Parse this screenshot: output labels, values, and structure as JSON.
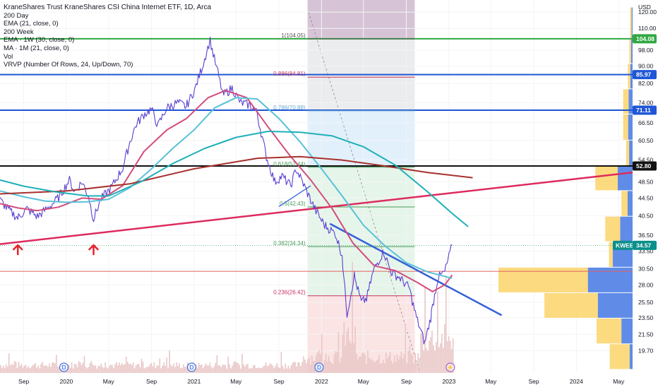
{
  "header": {
    "title": "KraneShares Trust KraneShares CSI China Internet ETF, 1D, Arca",
    "indicators": [
      "200 Day",
      "EMA (21, close, 0)",
      "200 Week",
      "EMA · 1W (30, close, 0)",
      "MA · 1M (21, close, 0)",
      "Vol",
      "VRVP (Number Of Rows, 24, Up/Down, 70)"
    ]
  },
  "chart_data": {
    "type": "line",
    "symbol": "KWEB",
    "currency_label": "USD",
    "y_scale": "log",
    "ylim": [
      17.5,
      128
    ],
    "xlim": [
      "2019-06-25",
      "2024-06-10"
    ],
    "y_ticks": [
      120.0,
      110.0,
      98.0,
      90.0,
      82.0,
      74.0,
      66.5,
      60.5,
      54.5,
      48.5,
      44.5,
      40.5,
      36.5,
      33.5,
      30.5,
      28.0,
      25.5,
      23.5,
      21.5,
      19.7
    ],
    "x_ticks": [
      "Sep",
      "2020",
      "May",
      "Sep",
      "2021",
      "May",
      "Sep",
      "2022",
      "May",
      "Sep",
      "2023",
      "May",
      "Sep",
      "2024",
      "May"
    ],
    "x_tick_dates": [
      "2019-09-01",
      "2020-01-01",
      "2020-05-01",
      "2020-09-01",
      "2021-01-01",
      "2021-05-01",
      "2021-09-01",
      "2022-01-01",
      "2022-05-01",
      "2022-09-01",
      "2023-01-01",
      "2023-05-01",
      "2023-09-01",
      "2024-01-01",
      "2024-05-01"
    ],
    "price_label": "KWEB",
    "last_price": 34.57,
    "series": [
      {
        "name": "KWEB",
        "color": "#5b3fd0",
        "points": [
          [
            "2019-06-25",
            44.0
          ],
          [
            "2019-07-20",
            41.8
          ],
          [
            "2019-08-15",
            40.0
          ],
          [
            "2019-09-10",
            42.0
          ],
          [
            "2019-10-10",
            40.3
          ],
          [
            "2019-11-10",
            42.2
          ],
          [
            "2019-12-10",
            44.6
          ],
          [
            "2020-01-10",
            48.9
          ],
          [
            "2020-01-25",
            46.0
          ],
          [
            "2020-02-15",
            48.5
          ],
          [
            "2020-03-05",
            45.0
          ],
          [
            "2020-03-19",
            39.8
          ],
          [
            "2020-04-10",
            44.3
          ],
          [
            "2020-05-10",
            47.2
          ],
          [
            "2020-06-10",
            52.0
          ],
          [
            "2020-07-01",
            60.0
          ],
          [
            "2020-07-20",
            66.0
          ],
          [
            "2020-08-10",
            69.5
          ],
          [
            "2020-09-01",
            71.5
          ],
          [
            "2020-09-20",
            65.5
          ],
          [
            "2020-10-15",
            72.0
          ],
          [
            "2020-11-15",
            74.0
          ],
          [
            "2020-12-10",
            72.5
          ],
          [
            "2021-01-05",
            80.0
          ],
          [
            "2021-01-25",
            90.0
          ],
          [
            "2021-02-16",
            103.0
          ],
          [
            "2021-03-10",
            87.0
          ],
          [
            "2021-03-25",
            77.0
          ],
          [
            "2021-04-20",
            80.0
          ],
          [
            "2021-05-15",
            74.0
          ],
          [
            "2021-06-10",
            73.0
          ],
          [
            "2021-07-01",
            70.0
          ],
          [
            "2021-07-27",
            55.5
          ],
          [
            "2021-08-20",
            48.5
          ],
          [
            "2021-09-10",
            50.0
          ],
          [
            "2021-10-05",
            47.5
          ],
          [
            "2021-10-20",
            52.0
          ],
          [
            "2021-11-10",
            48.0
          ],
          [
            "2021-12-01",
            44.0
          ],
          [
            "2021-12-20",
            41.0
          ],
          [
            "2022-01-10",
            38.5
          ],
          [
            "2022-02-10",
            36.8
          ],
          [
            "2022-03-01",
            33.0
          ],
          [
            "2022-03-15",
            24.0
          ],
          [
            "2022-04-05",
            29.5
          ],
          [
            "2022-04-25",
            25.5
          ],
          [
            "2022-05-10",
            26.0
          ],
          [
            "2022-06-01",
            30.5
          ],
          [
            "2022-06-28",
            33.5
          ],
          [
            "2022-07-20",
            30.0
          ],
          [
            "2022-08-15",
            29.0
          ],
          [
            "2022-09-10",
            27.5
          ],
          [
            "2022-09-30",
            23.5
          ],
          [
            "2022-10-24",
            20.5
          ],
          [
            "2022-11-10",
            23.5
          ],
          [
            "2022-11-30",
            29.0
          ],
          [
            "2022-12-20",
            30.0
          ],
          [
            "2023-01-10",
            34.57
          ]
        ]
      },
      {
        "name": "EMA (21, close, 0)",
        "color": "#d14d7c",
        "points": [
          [
            "2019-06-25",
            43.2
          ],
          [
            "2019-08-15",
            42.2
          ],
          [
            "2019-10-10",
            41.6
          ],
          [
            "2019-12-10",
            42.4
          ],
          [
            "2020-02-15",
            44.5
          ],
          [
            "2020-04-10",
            44.2
          ],
          [
            "2020-06-10",
            47.5
          ],
          [
            "2020-08-10",
            57.0
          ],
          [
            "2020-10-15",
            64.0
          ],
          [
            "2020-12-10",
            68.0
          ],
          [
            "2021-02-10",
            76.0
          ],
          [
            "2021-04-01",
            79.0
          ],
          [
            "2021-06-01",
            76.0
          ],
          [
            "2021-08-01",
            65.0
          ],
          [
            "2021-10-01",
            56.0
          ],
          [
            "2021-12-01",
            49.0
          ],
          [
            "2022-02-01",
            42.0
          ],
          [
            "2022-04-01",
            35.0
          ],
          [
            "2022-06-01",
            31.0
          ],
          [
            "2022-08-01",
            30.2
          ],
          [
            "2022-10-01",
            28.4
          ],
          [
            "2022-11-15",
            27.0
          ],
          [
            "2022-12-20",
            28.0
          ],
          [
            "2023-01-10",
            29.5
          ]
        ]
      },
      {
        "name": "200 Day",
        "color": "#58c1d9",
        "points": [
          [
            "2019-06-25",
            46.2
          ],
          [
            "2019-09-01",
            44.8
          ],
          [
            "2019-11-01",
            43.8
          ],
          [
            "2020-01-01",
            43.5
          ],
          [
            "2020-03-01",
            43.6
          ],
          [
            "2020-05-01",
            44.2
          ],
          [
            "2020-07-01",
            47.0
          ],
          [
            "2020-09-01",
            52.0
          ],
          [
            "2020-11-01",
            58.0
          ],
          [
            "2021-01-01",
            64.0
          ],
          [
            "2021-03-01",
            72.0
          ],
          [
            "2021-05-01",
            76.0
          ],
          [
            "2021-07-01",
            75.5
          ],
          [
            "2021-09-01",
            68.0
          ],
          [
            "2021-11-01",
            60.0
          ],
          [
            "2022-01-01",
            52.0
          ],
          [
            "2022-03-01",
            45.0
          ],
          [
            "2022-05-01",
            38.5
          ],
          [
            "2022-07-01",
            34.5
          ],
          [
            "2022-09-01",
            31.5
          ],
          [
            "2022-11-01",
            30.0
          ],
          [
            "2023-01-10",
            29.0
          ]
        ]
      },
      {
        "name": "200 Week",
        "color": "#a8302d",
        "points": [
          [
            "2019-06-25",
            45.5
          ],
          [
            "2020-01-01",
            46.2
          ],
          [
            "2020-07-01",
            48.0
          ],
          [
            "2021-01-01",
            52.0
          ],
          [
            "2021-07-01",
            55.0
          ],
          [
            "2021-11-01",
            55.5
          ],
          [
            "2022-03-01",
            54.5
          ],
          [
            "2022-07-01",
            52.8
          ],
          [
            "2022-11-01",
            51.0
          ],
          [
            "2023-03-10",
            49.6
          ]
        ]
      },
      {
        "name": "EMA · 1W (30, close, 0)",
        "color": "#20b0b8",
        "points": [
          [
            "2019-06-25",
            49.0
          ],
          [
            "2019-09-01",
            47.4
          ],
          [
            "2019-12-01",
            46.0
          ],
          [
            "2020-03-01",
            45.0
          ],
          [
            "2020-05-01",
            45.0
          ],
          [
            "2020-08-01",
            48.5
          ],
          [
            "2020-11-01",
            53.5
          ],
          [
            "2021-02-01",
            58.0
          ],
          [
            "2021-05-01",
            61.5
          ],
          [
            "2021-08-01",
            63.5
          ],
          [
            "2021-11-01",
            63.2
          ],
          [
            "2022-02-01",
            62.0
          ],
          [
            "2022-05-01",
            58.5
          ],
          [
            "2022-08-01",
            53.0
          ],
          [
            "2022-11-01",
            46.0
          ],
          [
            "2023-01-10",
            41.0
          ],
          [
            "2023-02-25",
            38.2
          ]
        ]
      }
    ],
    "horizontal_levels": [
      {
        "value": 104.08,
        "color": "#31a842",
        "label": "104.08"
      },
      {
        "value": 85.97,
        "color": "#1f56d6",
        "label": "85.97"
      },
      {
        "value": 71.11,
        "color": "#1f56d6",
        "label": "71.11"
      },
      {
        "value": 52.8,
        "color": "#111111",
        "label": "52.80"
      },
      {
        "value": 30.1,
        "color": "#e06060",
        "label": ""
      }
    ],
    "fibonacci": [
      {
        "label": "1(104.05)",
        "value": 104.05
      },
      {
        "label": "0.886(84.81)",
        "value": 84.81
      },
      {
        "label": "0.786(70.88)",
        "value": 70.88
      },
      {
        "label": "0.618(52.44)",
        "value": 52.44
      },
      {
        "label": "0.5(42.43)",
        "value": 42.43
      },
      {
        "label": "0.382(34.34)",
        "value": 34.34
      },
      {
        "label": "0.236(26.42)",
        "value": 26.42
      }
    ],
    "trendlines": [
      {
        "color": "#dd2b5d",
        "from": [
          "2019-06-25",
          34.8
        ],
        "to": [
          "2024-06-10",
          51.0
        ]
      },
      {
        "color": "#3561d8",
        "from": [
          "2022-01-25",
          38.8
        ],
        "to": [
          "2023-06-01",
          23.8
        ]
      },
      {
        "color": "#4b72d8",
        "from": [
          "2021-09-01",
          42.5
        ],
        "to": [
          "2021-12-01",
          47.5
        ]
      }
    ],
    "markers": [
      {
        "type": "up-arrow",
        "date": "2019-08-15",
        "color": "#e8202a"
      },
      {
        "type": "up-arrow",
        "date": "2020-03-19",
        "color": "#e8202a"
      }
    ],
    "event_badges": [
      {
        "label": "D",
        "date": "2019-12-25"
      },
      {
        "label": "D",
        "date": "2020-12-25"
      },
      {
        "label": "D",
        "date": "2021-12-25"
      },
      {
        "label": "⚡",
        "date": "2023-01-05"
      }
    ],
    "volume_profile": [
      {
        "low": 104.0,
        "high": 123.0,
        "up": 0.6,
        "down": 0.4
      },
      {
        "low": 91.0,
        "high": 104.0,
        "up": 0.7,
        "down": 0.6
      },
      {
        "low": 79.5,
        "high": 91.0,
        "up": 1.0,
        "down": 0.9
      },
      {
        "low": 69.5,
        "high": 79.5,
        "up": 2.2,
        "down": 1.6
      },
      {
        "low": 60.5,
        "high": 69.5,
        "up": 2.0,
        "down": 1.8
      },
      {
        "low": 52.8,
        "high": 60.5,
        "up": 1.2,
        "down": 1.4
      },
      {
        "low": 46.2,
        "high": 52.8,
        "up": 9.0,
        "down": 6.0
      },
      {
        "low": 40.3,
        "high": 46.2,
        "up": 2.5,
        "down": 2.0
      },
      {
        "low": 35.2,
        "high": 40.3,
        "up": 6.0,
        "down": 5.0
      },
      {
        "low": 30.7,
        "high": 35.2,
        "up": 1.5,
        "down": 8.0
      },
      {
        "low": 26.8,
        "high": 30.7,
        "up": 36.0,
        "down": 18.0
      },
      {
        "low": 23.4,
        "high": 26.8,
        "up": 21.5,
        "down": 14.0
      },
      {
        "low": 20.4,
        "high": 23.4,
        "up": 10.0,
        "down": 4.5
      },
      {
        "low": 17.8,
        "high": 20.4,
        "up": 8.0,
        "down": 1.2
      }
    ],
    "colors": {
      "bull_zone": "#e6f5ea",
      "bear_zone": "#fbe4e4",
      "grey_zone": "#ebeced",
      "blue_zone": "#e2f0fc",
      "purple_zone": "#d6c4d6",
      "profile_up": "#fbd36a",
      "profile_down": "#4f7fe6",
      "volume_bar": "#e9c6c6"
    }
  }
}
